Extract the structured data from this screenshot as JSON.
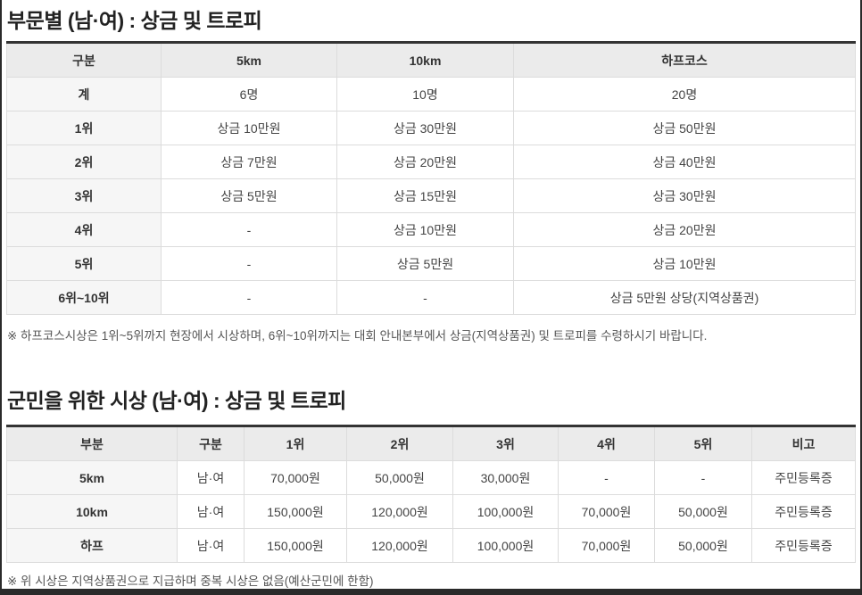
{
  "section1": {
    "title": "부문별 (남·여) : 상금 및 트로피",
    "headers": [
      "구분",
      "5km",
      "10km",
      "하프코스"
    ],
    "rows": [
      [
        "계",
        "6명",
        "10명",
        "20명"
      ],
      [
        "1위",
        "상금 10만원",
        "상금 30만원",
        "상금 50만원"
      ],
      [
        "2위",
        "상금 7만원",
        "상금 20만원",
        "상금 40만원"
      ],
      [
        "3위",
        "상금 5만원",
        "상금 15만원",
        "상금 30만원"
      ],
      [
        "4위",
        "-",
        "상금 10만원",
        "상금 20만원"
      ],
      [
        "5위",
        "-",
        "상금 5만원",
        "상금 10만원"
      ],
      [
        "6위~10위",
        "-",
        "-",
        "상금 5만원 상당(지역상품권)"
      ]
    ],
    "note": "※ 하프코스시상은 1위~5위까지 현장에서 시상하며, 6위~10위까지는 대회 안내본부에서 상금(지역상품권) 및 트로피를 수령하시기 바랍니다."
  },
  "section2": {
    "title": "군민을 위한 시상 (남·여) : 상금 및 트로피",
    "headers": [
      "부분",
      "구분",
      "1위",
      "2위",
      "3위",
      "4위",
      "5위",
      "비고"
    ],
    "rows": [
      [
        "5km",
        "남·여",
        "70,000원",
        "50,000원",
        "30,000원",
        "-",
        "-",
        "주민등록증"
      ],
      [
        "10km",
        "남·여",
        "150,000원",
        "120,000원",
        "100,000원",
        "70,000원",
        "50,000원",
        "주민등록증"
      ],
      [
        "하프",
        "남·여",
        "150,000원",
        "120,000원",
        "100,000원",
        "70,000원",
        "50,000원",
        "주민등록증"
      ]
    ],
    "note": "※ 위 시상은 지역상품권으로 지급하며 중복 시상은 없음(예산군민에 한함)"
  }
}
